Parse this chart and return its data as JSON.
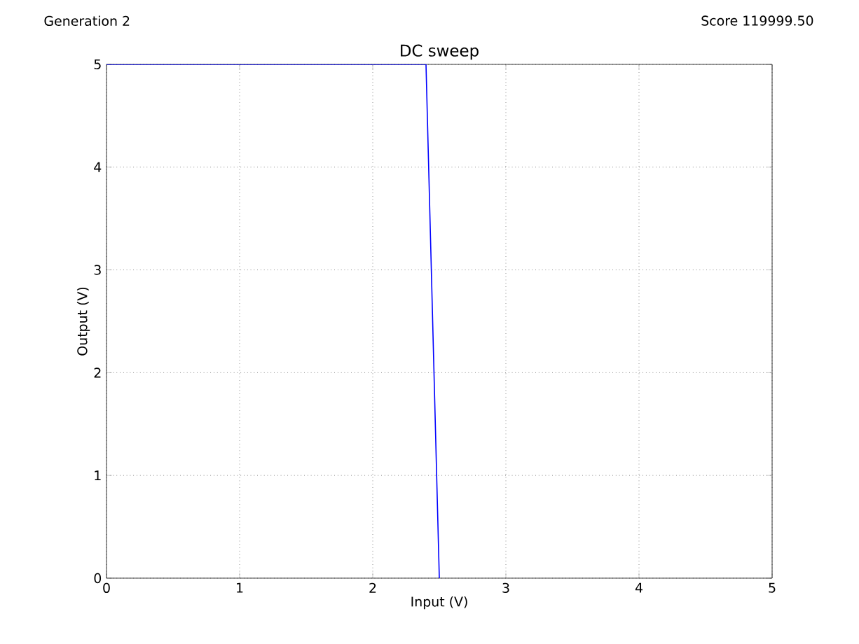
{
  "chart_data": {
    "type": "line",
    "title": "DC sweep",
    "xlabel": "Input (V)",
    "ylabel": "Output (V)",
    "annotations": [
      "Generation 2",
      "Score 119999.50"
    ],
    "x": [
      0,
      2.4,
      2.5
    ],
    "series": [
      {
        "color": "#0000ff",
        "values": [
          5,
          5,
          0
        ]
      }
    ],
    "xlim": [
      0,
      5
    ],
    "ylim": [
      0,
      5
    ],
    "xticks": [
      0,
      1,
      2,
      3,
      4,
      5
    ],
    "yticks": [
      0,
      1,
      2,
      3,
      4,
      5
    ],
    "grid": true,
    "line_style": "solid",
    "marker": "none"
  }
}
